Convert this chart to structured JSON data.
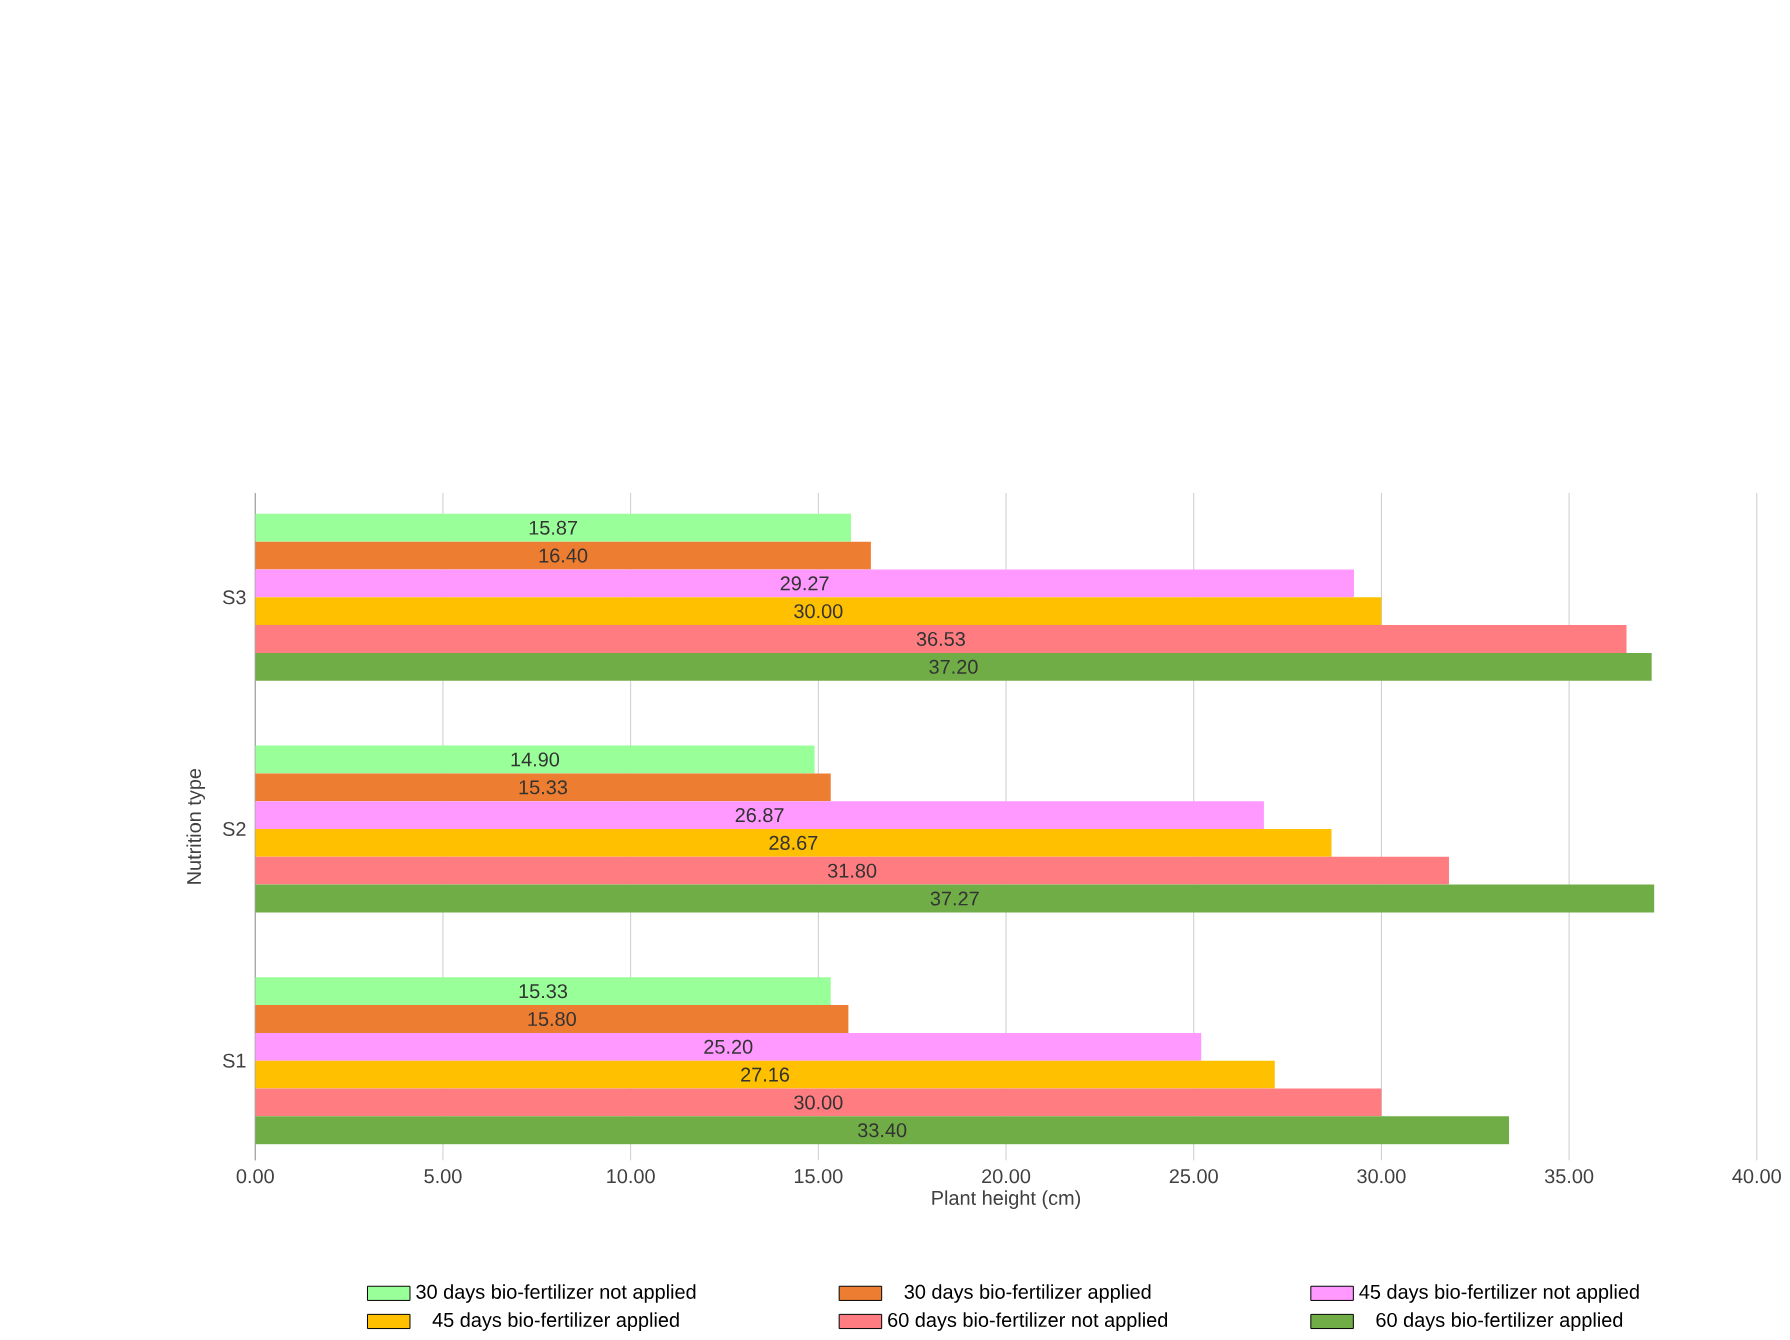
{
  "chart_data": {
    "type": "bar",
    "orientation": "horizontal",
    "xlabel": "Plant height (cm)",
    "ylabel": "Nutrition type",
    "categories": [
      "S3",
      "S2",
      "S1"
    ],
    "series": [
      {
        "name": "30 days bio-fertilizer not applied",
        "color": "#99ff99",
        "values": [
          15.87,
          14.9,
          15.33
        ],
        "value_labels": [
          "15.87",
          "14.90",
          "15.33"
        ]
      },
      {
        "name": "30 days bio-fertilizer applied",
        "color": "#ed7d31",
        "values": [
          16.4,
          15.33,
          15.8
        ],
        "value_labels": [
          "16.40",
          "15.33",
          "15.80"
        ]
      },
      {
        "name": "45 days bio-fertilizer not applied",
        "color": "#ff99ff",
        "values": [
          29.27,
          26.87,
          25.2
        ],
        "value_labels": [
          "29.27",
          "26.87",
          "25.20"
        ]
      },
      {
        "name": "45 days bio-fertilizer applied",
        "color": "#ffc000",
        "values": [
          30.0,
          28.67,
          27.16
        ],
        "value_labels": [
          "30.00",
          "28.67",
          "27.16"
        ]
      },
      {
        "name": "60 days bio-fertilizer not applied",
        "color": "#ff7c80",
        "values": [
          36.53,
          31.8,
          30.0
        ],
        "value_labels": [
          "36.53",
          "31.80",
          "30.00"
        ]
      },
      {
        "name": "60 days bio-fertilizer applied",
        "color": "#70ad47",
        "values": [
          37.2,
          37.27,
          33.4
        ],
        "value_labels": [
          "37.20",
          "37.27",
          "33.40"
        ]
      }
    ],
    "xlim": [
      0,
      40
    ],
    "xticks": [
      {
        "value": 0,
        "label": "0.00"
      },
      {
        "value": 5,
        "label": "5.00"
      },
      {
        "value": 10,
        "label": "10.00"
      },
      {
        "value": 15,
        "label": "15.00"
      },
      {
        "value": 20,
        "label": "20.00"
      },
      {
        "value": 25,
        "label": "25.00"
      },
      {
        "value": 30,
        "label": "30.00"
      },
      {
        "value": 35,
        "label": "35.00"
      },
      {
        "value": 40,
        "label": "40.00"
      }
    ],
    "grid": "x",
    "legend": "bottom"
  }
}
